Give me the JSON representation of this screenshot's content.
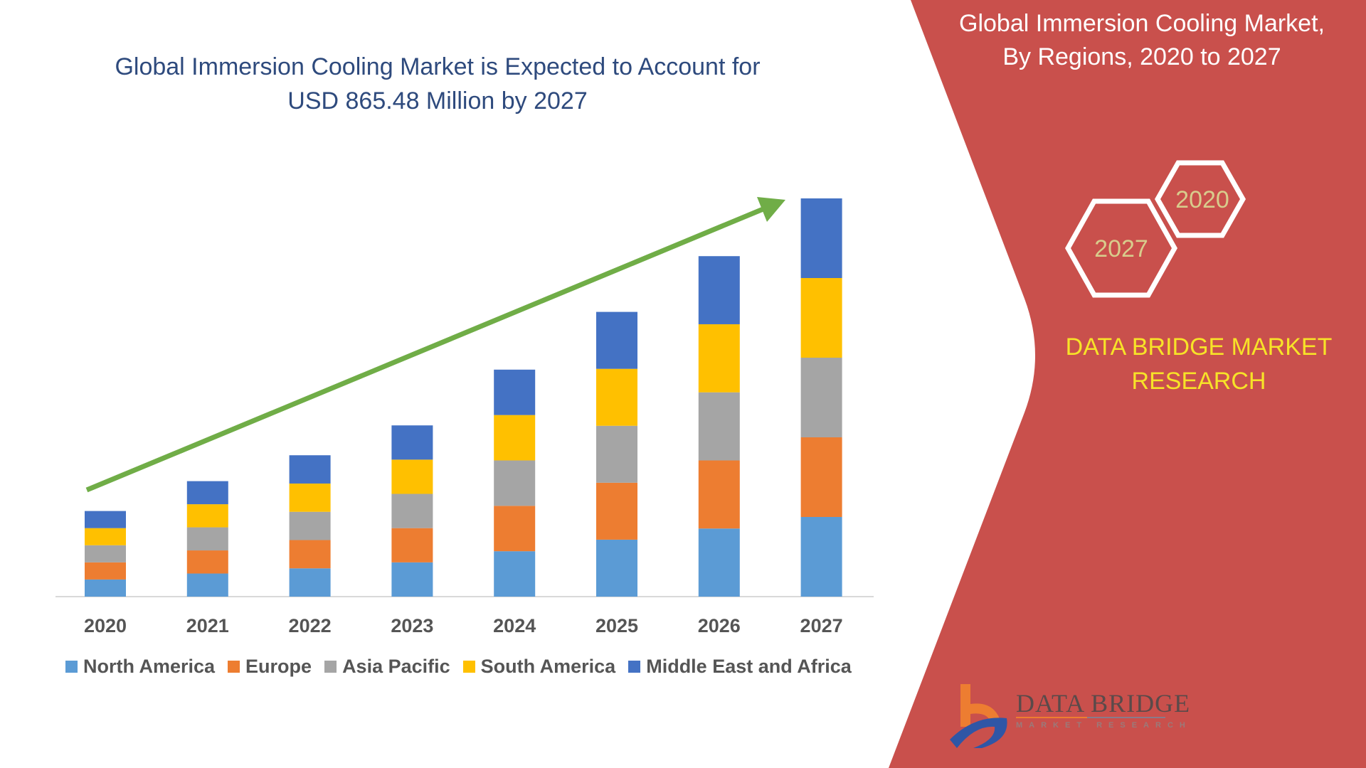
{
  "title_lines": [
    "Global Immersion Cooling Market is Expected to Account for",
    "USD 865.48 Million by 2027"
  ],
  "side_title_lines": [
    "Global Immersion Cooling Market,",
    "By Regions, 2020 to 2027"
  ],
  "hexagons": [
    "2020",
    "2027"
  ],
  "brand_lines": [
    "DATA BRIDGE MARKET",
    "RESEARCH"
  ],
  "logo": {
    "name": "DATA BRIDGE",
    "sub": "MARKET RESEARCH"
  },
  "colors": {
    "panel": "#c9504c",
    "arrow": "#70ad47",
    "title": "#2e4a7d",
    "brand": "#f7e328",
    "hex_text": "#d8cc8c"
  },
  "chart_data": {
    "type": "bar",
    "stacked": true,
    "title": "Global Immersion Cooling Market is Expected to Account for USD 865.48 Million by 2027",
    "xlabel": "",
    "ylabel": "",
    "categories": [
      "2020",
      "2021",
      "2022",
      "2023",
      "2024",
      "2025",
      "2026",
      "2027"
    ],
    "ylim": [
      0,
      100
    ],
    "value_note": "relative units (no axis values shown)",
    "series": [
      {
        "name": "North America",
        "color": "#5b9bd5",
        "values": [
          4.3,
          5.8,
          7.1,
          8.6,
          11.4,
          14.3,
          17.1,
          20.0
        ]
      },
      {
        "name": "Europe",
        "color": "#ed7d31",
        "values": [
          4.3,
          5.8,
          7.1,
          8.6,
          11.4,
          14.3,
          17.1,
          20.0
        ]
      },
      {
        "name": "Asia Pacific",
        "color": "#a5a5a5",
        "values": [
          4.3,
          5.8,
          7.1,
          8.6,
          11.4,
          14.3,
          17.1,
          20.0
        ]
      },
      {
        "name": "South America",
        "color": "#ffc000",
        "values": [
          4.3,
          5.8,
          7.1,
          8.6,
          11.4,
          14.3,
          17.1,
          20.0
        ]
      },
      {
        "name": "Middle East and Africa",
        "color": "#4472c4",
        "values": [
          4.3,
          5.8,
          7.1,
          8.6,
          11.4,
          14.3,
          17.1,
          20.0
        ]
      }
    ],
    "legend_position": "bottom",
    "grid": false,
    "annotations": [
      "upward trend arrow"
    ]
  }
}
